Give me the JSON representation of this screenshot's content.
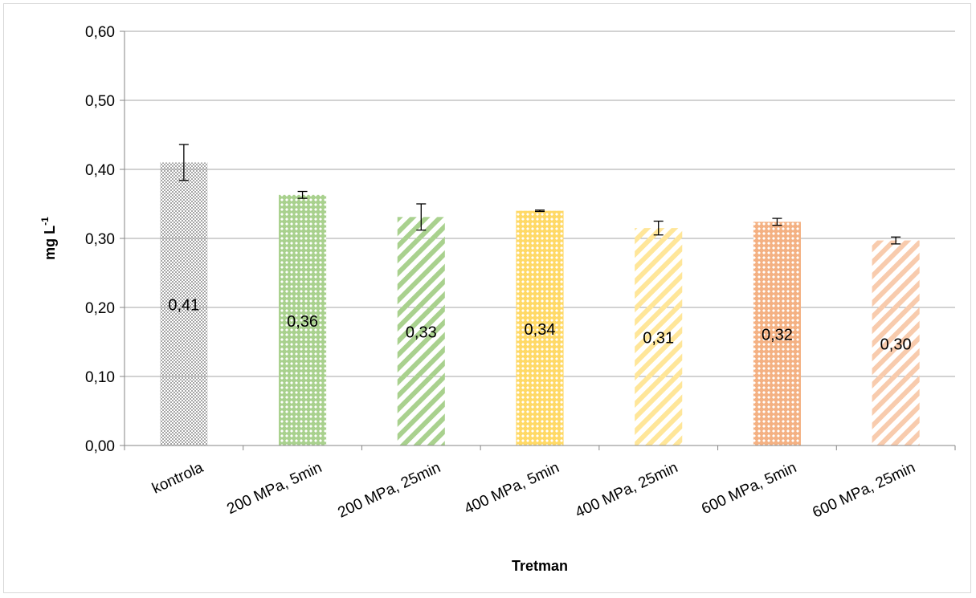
{
  "chart_data": {
    "type": "bar",
    "title": "",
    "xlabel": "Tretman",
    "ylabel": {
      "main": "mg L",
      "superscript": "-1"
    },
    "ylim": [
      0,
      0.6
    ],
    "yticks": [
      "0,00",
      "0,10",
      "0,20",
      "0,30",
      "0,40",
      "0,50",
      "0,60"
    ],
    "grid": true,
    "legend": "none",
    "categories": [
      "kontrola",
      "200 MPa, 5min",
      "200 MPa, 25min",
      "400 MPa, 5min",
      "400 MPa, 25min",
      "600 MPa, 5min",
      "600 MPa, 25min"
    ],
    "values": [
      0.41,
      0.363,
      0.331,
      0.34,
      0.315,
      0.324,
      0.297
    ],
    "value_labels": [
      "0,41",
      "0,36",
      "0,33",
      "0,34",
      "0,31",
      "0,32",
      "0,30"
    ],
    "errors": [
      0.026,
      0.005,
      0.019,
      0.001,
      0.01,
      0.005,
      0.005
    ],
    "bar_colors": [
      "#a6a6a6",
      "#a9d18e",
      "#a9d18e",
      "#ffd966",
      "#ffe699",
      "#f4b183",
      "#f8cbad"
    ],
    "bar_patterns": [
      "dots",
      "lattice",
      "diagonal",
      "lattice",
      "diagonal",
      "lattice",
      "diagonal"
    ]
  }
}
